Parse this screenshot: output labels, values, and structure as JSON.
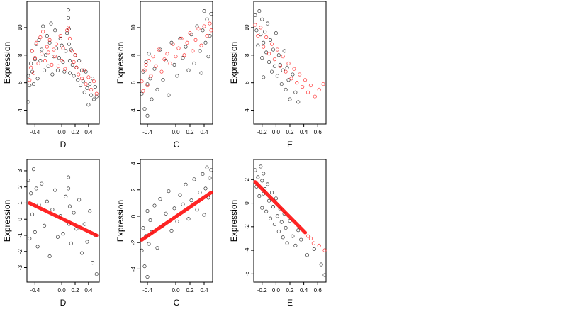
{
  "chart_data": [
    {
      "type": "scatter",
      "xlabel": "D",
      "ylabel": "Expression",
      "x_ticks": [
        "-0.4",
        "0.0",
        "0.2",
        "0.4"
      ],
      "y_ticks": [
        "4",
        "6",
        "8",
        "10"
      ],
      "xlim": [
        -0.52,
        0.56
      ],
      "ylim": [
        3.0,
        11.9
      ],
      "series": [
        {
          "color": "#000000",
          "x": [
            -0.5,
            -0.5,
            -0.48,
            -0.46,
            -0.45,
            -0.44,
            -0.42,
            -0.4,
            -0.38,
            -0.36,
            -0.34,
            -0.32,
            -0.3,
            -0.28,
            -0.26,
            -0.24,
            -0.22,
            -0.2,
            -0.18,
            -0.16,
            -0.14,
            -0.12,
            -0.1,
            -0.08,
            -0.06,
            -0.04,
            -0.02,
            0.0,
            0.02,
            0.04,
            0.06,
            0.08,
            0.1,
            0.1,
            0.11,
            0.11,
            0.12,
            0.12,
            0.14,
            0.16,
            0.18,
            0.2,
            0.22,
            0.24,
            0.26,
            0.28,
            0.3,
            0.32,
            0.34,
            0.36,
            0.38,
            0.4,
            0.42,
            0.44,
            0.46,
            0.48,
            0.5,
            0.52
          ],
          "y": [
            4.6,
            6.5,
            5.8,
            7.4,
            8.3,
            6.8,
            5.9,
            7.7,
            8.8,
            6.3,
            9.1,
            7.6,
            8.4,
            10.1,
            6.9,
            8.0,
            9.4,
            7.2,
            8.9,
            10.3,
            6.6,
            7.9,
            9.8,
            8.5,
            6.9,
            7.8,
            9.2,
            8.7,
            7.5,
            6.8,
            8.3,
            9.6,
            11.3,
            10.7,
            9.9,
            8.8,
            7.6,
            6.7,
            8.4,
            7.3,
            6.5,
            8.0,
            7.1,
            6.2,
            7.6,
            5.8,
            6.9,
            6.1,
            5.3,
            6.8,
            5.6,
            4.4,
            5.9,
            5.1,
            6.3,
            4.8,
            5.7,
            5.0
          ]
        },
        {
          "color": "#ff0000",
          "x": [
            -0.48,
            -0.46,
            -0.44,
            -0.42,
            -0.4,
            -0.38,
            -0.35,
            -0.32,
            -0.3,
            -0.28,
            -0.25,
            -0.22,
            -0.2,
            -0.18,
            -0.15,
            -0.12,
            -0.1,
            -0.08,
            -0.05,
            -0.02,
            0.0,
            0.02,
            0.05,
            0.08,
            0.1,
            0.12,
            0.15,
            0.18,
            0.2,
            0.22,
            0.25,
            0.28,
            0.3,
            0.33,
            0.36,
            0.4,
            0.44,
            0.48,
            0.52
          ],
          "y": [
            6.2,
            7.1,
            8.3,
            6.7,
            7.8,
            8.9,
            7.4,
            9.3,
            8.1,
            9.7,
            7.6,
            8.6,
            8.2,
            9.1,
            7.3,
            8.4,
            7.9,
            8.8,
            7.2,
            9.4,
            7.6,
            8.5,
            7.0,
            9.8,
            10.0,
            9.2,
            8.3,
            7.5,
            8.0,
            7.1,
            6.6,
            7.4,
            6.3,
            6.9,
            5.9,
            6.4,
            5.5,
            6.1,
            5.2
          ]
        }
      ]
    },
    {
      "type": "scatter",
      "xlabel": "C",
      "ylabel": "Expression",
      "x_ticks": [
        "-0.4",
        "0.0",
        "0.2",
        "0.4"
      ],
      "y_ticks": [
        "4",
        "6",
        "8",
        "10"
      ],
      "xlim": [
        -0.5,
        0.52
      ],
      "ylim": [
        3.0,
        11.9
      ],
      "series": [
        {
          "color": "#000000",
          "x": [
            -0.48,
            -0.46,
            -0.44,
            -0.42,
            -0.4,
            -0.4,
            -0.38,
            -0.36,
            -0.34,
            -0.3,
            -0.26,
            -0.22,
            -0.18,
            -0.14,
            -0.1,
            -0.06,
            -0.02,
            0.02,
            0.06,
            0.1,
            0.14,
            0.18,
            0.22,
            0.26,
            0.3,
            0.34,
            0.36,
            0.38,
            0.4,
            0.42,
            0.44,
            0.46,
            0.48,
            0.5
          ],
          "y": [
            5.2,
            6.8,
            4.1,
            7.5,
            5.9,
            3.6,
            8.1,
            6.3,
            4.8,
            7.0,
            5.5,
            8.4,
            6.2,
            7.6,
            5.1,
            8.9,
            7.3,
            6.5,
            9.2,
            7.8,
            8.6,
            6.9,
            9.5,
            7.4,
            10.1,
            8.3,
            6.7,
            9.8,
            11.2,
            8.9,
            10.6,
            7.9,
            9.4,
            11.0
          ]
        },
        {
          "color": "#ff0000",
          "x": [
            -0.48,
            -0.46,
            -0.44,
            -0.42,
            -0.4,
            -0.38,
            -0.35,
            -0.32,
            -0.28,
            -0.24,
            -0.2,
            -0.16,
            -0.12,
            -0.08,
            -0.04,
            0.0,
            0.04,
            0.08,
            0.12,
            0.16,
            0.2,
            0.24,
            0.28,
            0.32,
            0.36,
            0.4,
            0.44,
            0.48,
            0.5
          ],
          "y": [
            6.1,
            5.4,
            6.9,
            7.3,
            5.8,
            7.6,
            6.5,
            7.9,
            7.2,
            8.4,
            6.8,
            7.7,
            8.1,
            7.4,
            8.8,
            7.9,
            8.5,
            9.2,
            8.0,
            8.9,
            9.6,
            8.3,
            9.1,
            9.9,
            8.7,
            10.1,
            9.4,
            10.3,
            9.8
          ]
        }
      ]
    },
    {
      "type": "scatter",
      "xlabel": "E",
      "ylabel": "Expression",
      "x_ticks": [
        "-0.2",
        "0.0",
        "0.2",
        "0.4",
        "0.6"
      ],
      "y_ticks": [
        "4",
        "6",
        "8",
        "10"
      ],
      "xlim": [
        -0.32,
        0.72
      ],
      "ylim": [
        3.0,
        11.9
      ],
      "series": [
        {
          "color": "#000000",
          "x": [
            -0.3,
            -0.28,
            -0.26,
            -0.24,
            -0.22,
            -0.2,
            -0.2,
            -0.18,
            -0.18,
            -0.16,
            -0.14,
            -0.12,
            -0.1,
            -0.08,
            -0.06,
            -0.04,
            -0.02,
            0.0,
            0.02,
            0.04,
            0.06,
            0.08,
            0.1,
            0.12,
            0.14,
            0.16,
            0.18,
            0.2,
            0.24,
            0.28,
            0.32
          ],
          "y": [
            10.9,
            9.8,
            8.7,
            11.2,
            9.5,
            7.8,
            10.6,
            8.9,
            6.4,
            9.7,
            8.2,
            10.3,
            7.5,
            9.1,
            6.8,
            8.4,
            7.2,
            9.6,
            6.5,
            8.0,
            7.3,
            5.9,
            6.9,
            8.3,
            5.5,
            7.1,
            6.2,
            4.8,
            6.6,
            5.3,
            4.6
          ]
        },
        {
          "color": "#ff0000",
          "x": [
            -0.3,
            -0.26,
            -0.22,
            -0.18,
            -0.14,
            -0.1,
            -0.06,
            -0.02,
            0.02,
            0.06,
            0.1,
            0.14,
            0.18,
            0.22,
            0.26,
            0.3,
            0.34,
            0.38,
            0.42,
            0.46,
            0.5,
            0.56,
            0.62,
            0.68
          ],
          "y": [
            10.2,
            9.4,
            10.0,
            8.6,
            9.3,
            8.1,
            8.8,
            7.7,
            8.4,
            7.2,
            7.9,
            6.8,
            7.4,
            6.3,
            7.0,
            6.0,
            6.6,
            5.7,
            6.2,
            5.3,
            5.8,
            5.0,
            5.5,
            5.9
          ]
        }
      ]
    },
    {
      "type": "scatter",
      "xlabel": "D",
      "ylabel": "Expression",
      "x_ticks": [
        "-0.4",
        "0.0",
        "0.2",
        "0.4"
      ],
      "y_ticks": [
        "-3",
        "-2",
        "-1",
        "0",
        "1",
        "2",
        "3"
      ],
      "xlim": [
        -0.52,
        0.56
      ],
      "ylim": [
        -3.9,
        3.7
      ],
      "series": [
        {
          "color": "#000000",
          "x": [
            -0.5,
            -0.48,
            -0.46,
            -0.44,
            -0.42,
            -0.4,
            -0.38,
            -0.36,
            -0.34,
            -0.3,
            -0.26,
            -0.22,
            -0.18,
            -0.14,
            -0.1,
            -0.06,
            -0.02,
            0.02,
            0.06,
            0.1,
            0.1,
            0.11,
            0.12,
            0.14,
            0.18,
            0.22,
            0.26,
            0.3,
            0.34,
            0.38,
            0.42,
            0.46,
            0.5,
            0.52
          ],
          "y": [
            2.4,
            -1.2,
            1.6,
            0.3,
            3.1,
            -0.8,
            1.9,
            -1.7,
            0.9,
            2.2,
            -0.4,
            1.1,
            -2.3,
            0.6,
            1.8,
            -1.1,
            0.2,
            -0.9,
            1.4,
            2.6,
            1.9,
            -0.3,
            0.8,
            -1.5,
            0.4,
            -0.6,
            1.2,
            -2.1,
            -0.3,
            -1.4,
            0.5,
            -2.7,
            -1.0,
            -3.4
          ]
        },
        {
          "color": "#ff0000",
          "line_x": [
            -0.48,
            0.52
          ],
          "line_y": [
            1.0,
            -1.0
          ]
        }
      ]
    },
    {
      "type": "scatter",
      "xlabel": "C",
      "ylabel": "Expression",
      "x_ticks": [
        "-0.4",
        "0.0",
        "0.2",
        "0.4"
      ],
      "y_ticks": [
        "-4",
        "-2",
        "0",
        "2",
        "4"
      ],
      "xlim": [
        -0.5,
        0.52
      ],
      "ylim": [
        -5.0,
        4.3
      ],
      "series": [
        {
          "color": "#000000",
          "x": [
            -0.48,
            -0.46,
            -0.44,
            -0.42,
            -0.4,
            -0.4,
            -0.38,
            -0.36,
            -0.34,
            -0.3,
            -0.26,
            -0.22,
            -0.18,
            -0.14,
            -0.1,
            -0.06,
            -0.02,
            0.02,
            0.06,
            0.1,
            0.14,
            0.18,
            0.22,
            0.26,
            0.3,
            0.34,
            0.38,
            0.4,
            0.42,
            0.44,
            0.46,
            0.48,
            0.5
          ],
          "y": [
            -2.6,
            -0.9,
            -3.8,
            -1.5,
            0.4,
            -4.6,
            -2.1,
            -0.3,
            -1.2,
            0.8,
            -2.4,
            1.3,
            -0.7,
            0.2,
            1.9,
            -1.1,
            0.6,
            -0.4,
            1.6,
            0.9,
            2.4,
            -0.2,
            1.2,
            2.8,
            0.5,
            1.8,
            3.2,
            0.1,
            2.1,
            3.7,
            1.4,
            2.9,
            3.5
          ]
        },
        {
          "color": "#ff0000",
          "line_x": [
            -0.48,
            0.5
          ],
          "line_y": [
            -1.8,
            1.8
          ]
        }
      ]
    },
    {
      "type": "scatter",
      "xlabel": "E",
      "ylabel": "Expression",
      "x_ticks": [
        "-0.2",
        "0.0",
        "0.2",
        "0.4",
        "0.6"
      ],
      "y_ticks": [
        "-6",
        "-4",
        "-2",
        "0",
        "2"
      ],
      "xlim": [
        -0.32,
        0.72
      ],
      "ylim": [
        -6.7,
        3.7
      ],
      "series": [
        {
          "color": "#000000",
          "x": [
            -0.3,
            -0.28,
            -0.26,
            -0.24,
            -0.22,
            -0.2,
            -0.2,
            -0.18,
            -0.18,
            -0.16,
            -0.14,
            -0.12,
            -0.1,
            -0.08,
            -0.06,
            -0.04,
            -0.02,
            0.0,
            0.02,
            0.04,
            0.06,
            0.08,
            0.1,
            0.12,
            0.14,
            0.16,
            0.2,
            0.24,
            0.28,
            0.32,
            0.36,
            0.45,
            0.55,
            0.65,
            0.7
          ],
          "y": [
            2.8,
            1.4,
            2.2,
            0.6,
            3.1,
            1.9,
            -0.4,
            2.5,
            0.8,
            1.2,
            -0.7,
            1.6,
            0.2,
            -1.3,
            0.9,
            -0.3,
            -1.8,
            0.4,
            -1.1,
            -2.4,
            -0.5,
            -1.6,
            -2.9,
            -0.9,
            -2.1,
            -3.4,
            -1.5,
            -2.8,
            -3.6,
            -2.3,
            -3.1,
            -4.4,
            -3.9,
            -5.2,
            -6.1
          ]
        },
        {
          "color": "#ff0000",
          "line_x": [
            -0.3,
            0.42
          ],
          "line_y": [
            1.8,
            -2.5
          ],
          "x": [
            0.46,
            0.5,
            0.54,
            0.62,
            0.7
          ],
          "y": [
            -2.8,
            -3.0,
            -3.4,
            -3.6,
            -4.0
          ]
        }
      ]
    }
  ]
}
